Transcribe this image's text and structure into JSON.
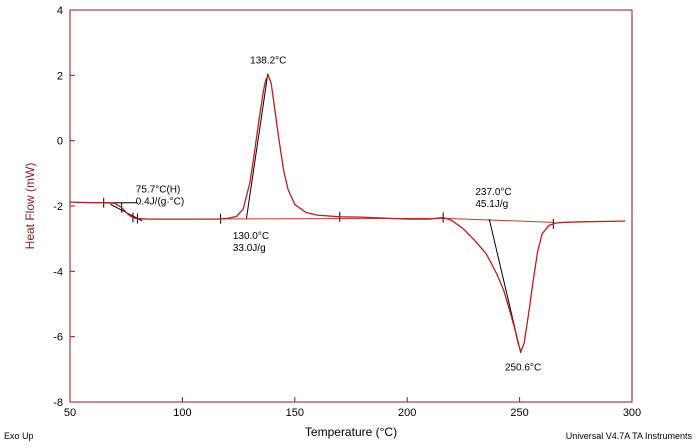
{
  "chart_data": {
    "type": "line",
    "title": "",
    "xlabel": "Temperature (°C)",
    "ylabel": "Heat Flow (mW)",
    "xlim": [
      50,
      300
    ],
    "ylim": [
      -8,
      4
    ],
    "x_ticks": [
      50,
      100,
      150,
      200,
      250,
      300
    ],
    "y_ticks": [
      4,
      2,
      0,
      -2,
      -4,
      -6,
      -8
    ],
    "grid": false,
    "series": [
      {
        "name": "heat flow",
        "color": "#b22222",
        "x": [
          50,
          60,
          65,
          70,
          73,
          75,
          77,
          79,
          85,
          100,
          115,
          120,
          124,
          127,
          130,
          132,
          134,
          136,
          137,
          138.2,
          139.5,
          141,
          143,
          145,
          147,
          150,
          155,
          160,
          170,
          180,
          190,
          200,
          210,
          216,
          220,
          225,
          230,
          235,
          237,
          240,
          243,
          246,
          248,
          249.5,
          250.6,
          252,
          254,
          256,
          258,
          260,
          263,
          266,
          270,
          280,
          290,
          297
        ],
        "y": [
          -1.88,
          -1.9,
          -1.9,
          -1.92,
          -2.05,
          -2.2,
          -2.32,
          -2.38,
          -2.4,
          -2.4,
          -2.4,
          -2.38,
          -2.32,
          -2.1,
          -1.3,
          -0.4,
          0.6,
          1.5,
          1.85,
          2.0,
          1.75,
          1.0,
          0.0,
          -0.9,
          -1.5,
          -1.95,
          -2.2,
          -2.28,
          -2.33,
          -2.34,
          -2.37,
          -2.4,
          -2.4,
          -2.35,
          -2.45,
          -2.7,
          -3.05,
          -3.45,
          -3.7,
          -4.1,
          -4.6,
          -5.3,
          -5.8,
          -6.25,
          -6.45,
          -6.2,
          -5.3,
          -4.3,
          -3.4,
          -2.85,
          -2.6,
          -2.52,
          -2.5,
          -2.48,
          -2.47,
          -2.46
        ]
      }
    ],
    "annotations": [
      {
        "lines": [
          "138.2°C"
        ],
        "x": 138.2,
        "y": 2.0,
        "kind": "peak"
      },
      {
        "lines": [
          "130.0°C",
          "33.0J/g"
        ],
        "x": 130.0,
        "y": -2.4,
        "kind": "onset"
      },
      {
        "lines": [
          "75.7°C(H)",
          "0.4J/(g·°C)"
        ],
        "x": 75.7,
        "y": -2.2,
        "kind": "glass-transition"
      },
      {
        "lines": [
          "237.0°C",
          "45.1J/g"
        ],
        "x": 237.0,
        "y": -2.4,
        "kind": "onset"
      },
      {
        "lines": [
          "250.6°C"
        ],
        "x": 250.6,
        "y": -6.45,
        "kind": "peak"
      }
    ],
    "baselines": [
      {
        "x": [
          80,
          217
        ],
        "y": [
          -2.4,
          -2.38
        ]
      },
      {
        "x": [
          217,
          265
        ],
        "y": [
          -2.38,
          -2.5
        ]
      }
    ],
    "tangents": [
      {
        "x": [
          128.5,
          138.0
        ],
        "y": [
          -2.38,
          2.05
        ]
      },
      {
        "x": [
          236.5,
          250.5
        ],
        "y": [
          -2.4,
          -6.5
        ]
      },
      {
        "x": [
          65,
          80
        ],
        "y": [
          -1.9,
          -1.9
        ]
      },
      {
        "x": [
          68,
          82
        ],
        "y": [
          -1.95,
          -2.45
        ]
      }
    ],
    "markers_x": [
      65,
      73,
      78,
      80,
      117,
      170,
      216,
      265
    ]
  },
  "footer": {
    "left": "Exo Up",
    "right": "Universal V4.7A TA Instruments"
  }
}
